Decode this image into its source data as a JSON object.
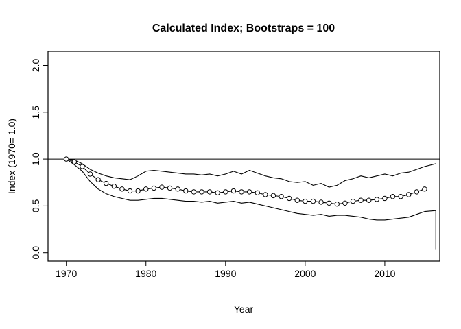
{
  "title": "Calculated Index; Bootstraps = 100",
  "chart_data": {
    "type": "line",
    "title": "Calculated Index; Bootstraps = 100",
    "xlabel": "Year",
    "ylabel": "Index (1970= 1.0)",
    "grid": false,
    "legend": "none",
    "xlim": [
      1967.7,
      2016.9
    ],
    "ylim": [
      -0.09,
      2.15
    ],
    "x_ticks": [
      1970,
      1980,
      1990,
      2000,
      2010
    ],
    "x_tick_labels": [
      "1970",
      "1980",
      "1990",
      "2000",
      "2010"
    ],
    "y_ticks": [
      0.0,
      0.5,
      1.0,
      1.5,
      2.0
    ],
    "y_tick_labels": [
      "0.0",
      "0.5",
      "1.0",
      "1.5",
      "2.0"
    ],
    "reference_line_y": 1.0,
    "series": [
      {
        "name": "index",
        "marker": "open-circle",
        "x": [
          1970,
          1971,
          1972,
          1973,
          1974,
          1975,
          1976,
          1977,
          1978,
          1979,
          1980,
          1981,
          1982,
          1983,
          1984,
          1985,
          1986,
          1987,
          1988,
          1989,
          1990,
          1991,
          1992,
          1993,
          1994,
          1995,
          1996,
          1997,
          1998,
          1999,
          2000,
          2001,
          2002,
          2003,
          2004,
          2005,
          2006,
          2007,
          2008,
          2009,
          2010,
          2011,
          2012,
          2013,
          2014,
          2015
        ],
        "values": [
          1.0,
          0.97,
          0.92,
          0.84,
          0.78,
          0.74,
          0.71,
          0.68,
          0.66,
          0.66,
          0.68,
          0.69,
          0.7,
          0.69,
          0.68,
          0.66,
          0.65,
          0.65,
          0.65,
          0.64,
          0.65,
          0.66,
          0.65,
          0.65,
          0.64,
          0.62,
          0.61,
          0.6,
          0.58,
          0.56,
          0.55,
          0.55,
          0.54,
          0.53,
          0.52,
          0.53,
          0.55,
          0.56,
          0.56,
          0.57,
          0.58,
          0.6,
          0.6,
          0.62,
          0.65,
          0.68
        ]
      },
      {
        "name": "upper_ci",
        "marker": "none",
        "x": [
          1970,
          1971,
          1972,
          1973,
          1974,
          1975,
          1976,
          1977,
          1978,
          1979,
          1980,
          1981,
          1982,
          1983,
          1984,
          1985,
          1986,
          1987,
          1988,
          1989,
          1990,
          1991,
          1992,
          1993,
          1994,
          1995,
          1996,
          1997,
          1998,
          1999,
          2000,
          2001,
          2002,
          2003,
          2004,
          2005,
          2006,
          2007,
          2008,
          2009,
          2010,
          2011,
          2012,
          2013,
          2014,
          2015,
          2016.4
        ],
        "values": [
          1.0,
          0.99,
          0.95,
          0.89,
          0.85,
          0.82,
          0.8,
          0.79,
          0.78,
          0.82,
          0.87,
          0.88,
          0.87,
          0.86,
          0.85,
          0.84,
          0.84,
          0.83,
          0.84,
          0.82,
          0.84,
          0.87,
          0.84,
          0.88,
          0.85,
          0.82,
          0.8,
          0.79,
          0.76,
          0.75,
          0.76,
          0.72,
          0.74,
          0.7,
          0.72,
          0.77,
          0.79,
          0.82,
          0.8,
          0.82,
          0.84,
          0.82,
          0.85,
          0.86,
          0.89,
          0.92,
          0.95
        ]
      },
      {
        "name": "lower_ci",
        "marker": "none",
        "x": [
          1970,
          1971,
          1972,
          1973,
          1974,
          1975,
          1976,
          1977,
          1978,
          1979,
          1980,
          1981,
          1982,
          1983,
          1984,
          1985,
          1986,
          1987,
          1988,
          1989,
          1990,
          1991,
          1992,
          1993,
          1994,
          1995,
          1996,
          1997,
          1998,
          1999,
          2000,
          2001,
          2002,
          2003,
          2004,
          2005,
          2006,
          2007,
          2008,
          2009,
          2010,
          2011,
          2012,
          2013,
          2014,
          2015,
          2016.4
        ],
        "values": [
          1.0,
          0.94,
          0.87,
          0.76,
          0.68,
          0.63,
          0.6,
          0.58,
          0.56,
          0.56,
          0.57,
          0.58,
          0.58,
          0.57,
          0.56,
          0.55,
          0.55,
          0.54,
          0.55,
          0.53,
          0.54,
          0.55,
          0.53,
          0.54,
          0.52,
          0.5,
          0.48,
          0.46,
          0.44,
          0.42,
          0.41,
          0.4,
          0.41,
          0.39,
          0.4,
          0.4,
          0.39,
          0.38,
          0.36,
          0.35,
          0.35,
          0.36,
          0.37,
          0.38,
          0.41,
          0.44,
          0.45
        ]
      }
    ],
    "end_drop": {
      "x": 2016.4,
      "from": 0.45,
      "to": 0.03
    }
  }
}
